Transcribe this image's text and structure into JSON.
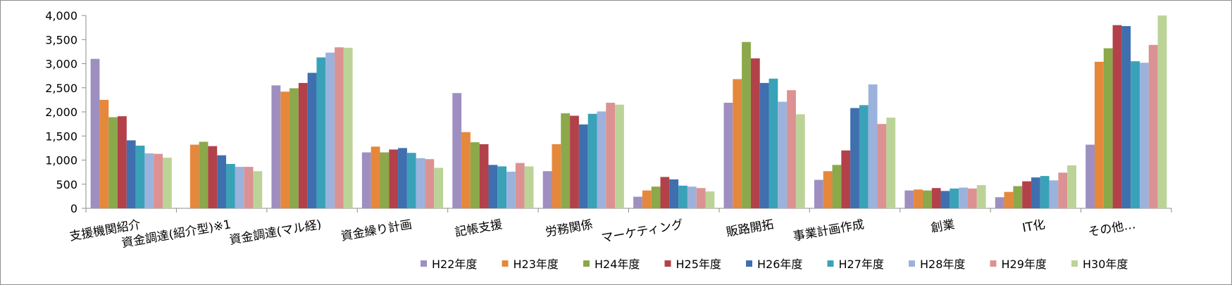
{
  "chart_data": {
    "type": "bar",
    "title": "",
    "xlabel": "",
    "ylabel": "",
    "ylim": [
      0,
      4000
    ],
    "y_ticks": [
      "0",
      "500",
      "1,000",
      "1,500",
      "2,000",
      "2,500",
      "3,000",
      "3,500",
      "4,000"
    ],
    "grid": false,
    "legend_position": "bottom-right",
    "categories": [
      "支援機関紹介",
      "資金調達(紹介型)※1",
      "資金調達(マル経)",
      "資金繰り計画",
      "記帳支援",
      "労務関係",
      "マーケティング",
      "販路開拓",
      "事業計画作成",
      "創業",
      "IT化",
      "その他…"
    ],
    "series": [
      {
        "name": "H22年度",
        "color": "#9e8fc0",
        "values": [
          3100,
          0,
          2550,
          1160,
          2390,
          770,
          240,
          2190,
          590,
          370,
          230,
          1320
        ]
      },
      {
        "name": "H23年度",
        "color": "#e5883c",
        "values": [
          2250,
          1320,
          2420,
          1280,
          1580,
          1330,
          370,
          2680,
          770,
          390,
          340,
          3040
        ]
      },
      {
        "name": "H24年度",
        "color": "#8ba84a",
        "values": [
          1890,
          1380,
          2490,
          1160,
          1370,
          1970,
          450,
          3450,
          900,
          370,
          460,
          3320
        ]
      },
      {
        "name": "H25年度",
        "color": "#b3414a",
        "values": [
          1910,
          1290,
          2600,
          1220,
          1330,
          1920,
          650,
          3110,
          1200,
          420,
          560,
          3800
        ]
      },
      {
        "name": "H26年度",
        "color": "#3f6fae",
        "values": [
          1410,
          1100,
          2810,
          1250,
          900,
          1740,
          600,
          2600,
          2080,
          360,
          640,
          3780
        ]
      },
      {
        "name": "H27年度",
        "color": "#3aa2b8",
        "values": [
          1300,
          920,
          3130,
          1150,
          870,
          1960,
          470,
          2690,
          2140,
          410,
          670,
          3050
        ]
      },
      {
        "name": "H28年度",
        "color": "#9bb3dc",
        "values": [
          1140,
          860,
          3230,
          1040,
          760,
          2010,
          450,
          2210,
          2570,
          430,
          580,
          3020
        ]
      },
      {
        "name": "H29年度",
        "color": "#dc9292",
        "values": [
          1130,
          860,
          3340,
          1020,
          940,
          2190,
          420,
          2450,
          1750,
          410,
          740,
          3390
        ]
      },
      {
        "name": "H30年度",
        "color": "#bcd397",
        "values": [
          1050,
          770,
          3330,
          840,
          870,
          2150,
          350,
          1950,
          1880,
          480,
          890,
          4000
        ]
      }
    ]
  }
}
